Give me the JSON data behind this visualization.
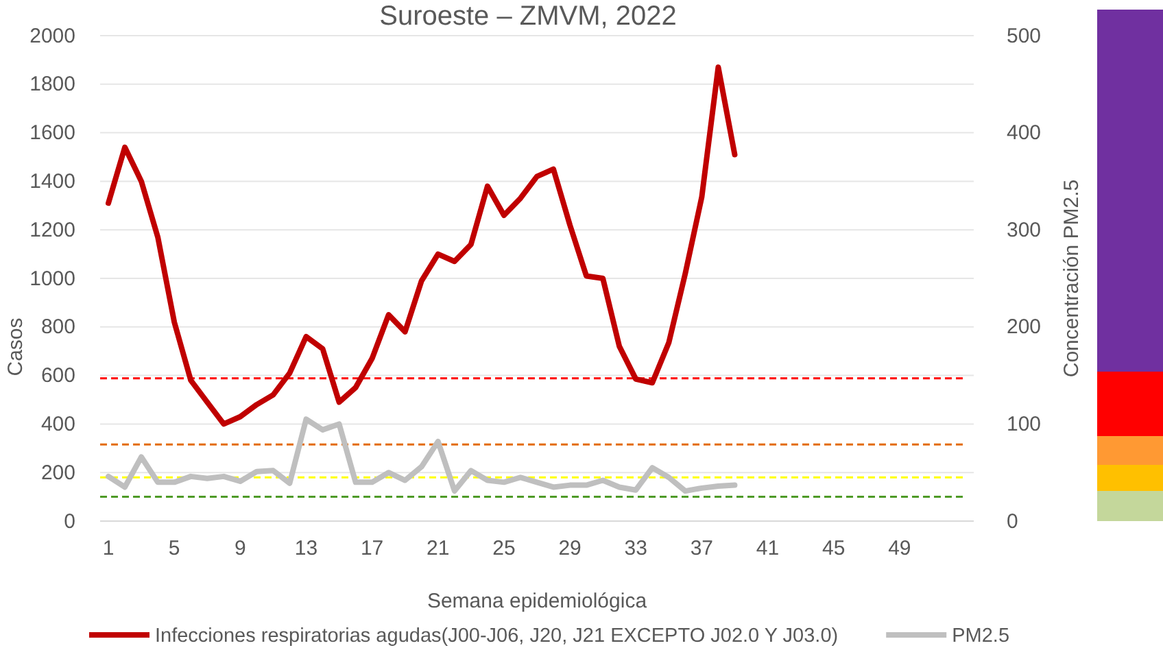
{
  "chart_data": {
    "type": "line",
    "title": "Suroeste – ZMVM, 2022",
    "xlabel": "Semana epidemiológica",
    "ylabel": "Casos",
    "y2label": "Concentración PM2.5",
    "x": [
      1,
      2,
      3,
      4,
      5,
      6,
      7,
      8,
      9,
      10,
      11,
      12,
      13,
      14,
      15,
      16,
      17,
      18,
      19,
      20,
      21,
      22,
      23,
      24,
      25,
      26,
      27,
      28,
      29,
      30,
      31,
      32,
      33,
      34,
      35,
      36,
      37,
      38,
      39
    ],
    "xlim": [
      0.5,
      53.5
    ],
    "xticks": [
      1,
      5,
      9,
      13,
      17,
      21,
      25,
      29,
      33,
      37,
      41,
      45,
      49
    ],
    "ylim": [
      0,
      2000
    ],
    "yticks": [
      0,
      200,
      400,
      600,
      800,
      1000,
      1200,
      1400,
      1600,
      1800,
      2000
    ],
    "y2lim": [
      0,
      500
    ],
    "y2ticks": [
      0,
      100,
      200,
      300,
      400,
      500
    ],
    "series": [
      {
        "name": "Infecciones respiratorias agudas(J00-J06, J20, J21 EXCEPTO J02.0 Y J03.0)",
        "color": "#c00000",
        "values": [
          1310,
          1540,
          1400,
          1170,
          820,
          580,
          490,
          400,
          430,
          480,
          520,
          610,
          760,
          710,
          490,
          550,
          670,
          850,
          780,
          990,
          1100,
          1070,
          1140,
          1380,
          1260,
          1330,
          1420,
          1450,
          1220,
          1010,
          1000,
          720,
          585,
          570,
          735,
          1020,
          1335,
          1870,
          1510
        ]
      },
      {
        "name": "PM2.5",
        "color": "#bfbfbf",
        "axis": "y2",
        "values": [
          46,
          35,
          66,
          40,
          40,
          46,
          44,
          46,
          41,
          51,
          52,
          39,
          105,
          94,
          100,
          40,
          40,
          50,
          42,
          56,
          82,
          31,
          52,
          42,
          40,
          45,
          40,
          35,
          37,
          37,
          42,
          35,
          32,
          55,
          45,
          31,
          34,
          36,
          37
        ]
      }
    ],
    "ref_lines": [
      {
        "axis": "y2",
        "value": 147,
        "color": "#ff0000",
        "line_style": "dashed"
      },
      {
        "axis": "y2",
        "value": 79,
        "color": "#e36c09",
        "line_style": "dashed"
      },
      {
        "axis": "y2",
        "value": 45,
        "color": "#ffff00",
        "line_style": "dashed"
      },
      {
        "axis": "y2",
        "value": 25,
        "color": "#4e9a27",
        "line_style": "dashed"
      }
    ],
    "grid": "y",
    "legend": "bottom",
    "marker": "none",
    "line_style": "solid"
  }
}
